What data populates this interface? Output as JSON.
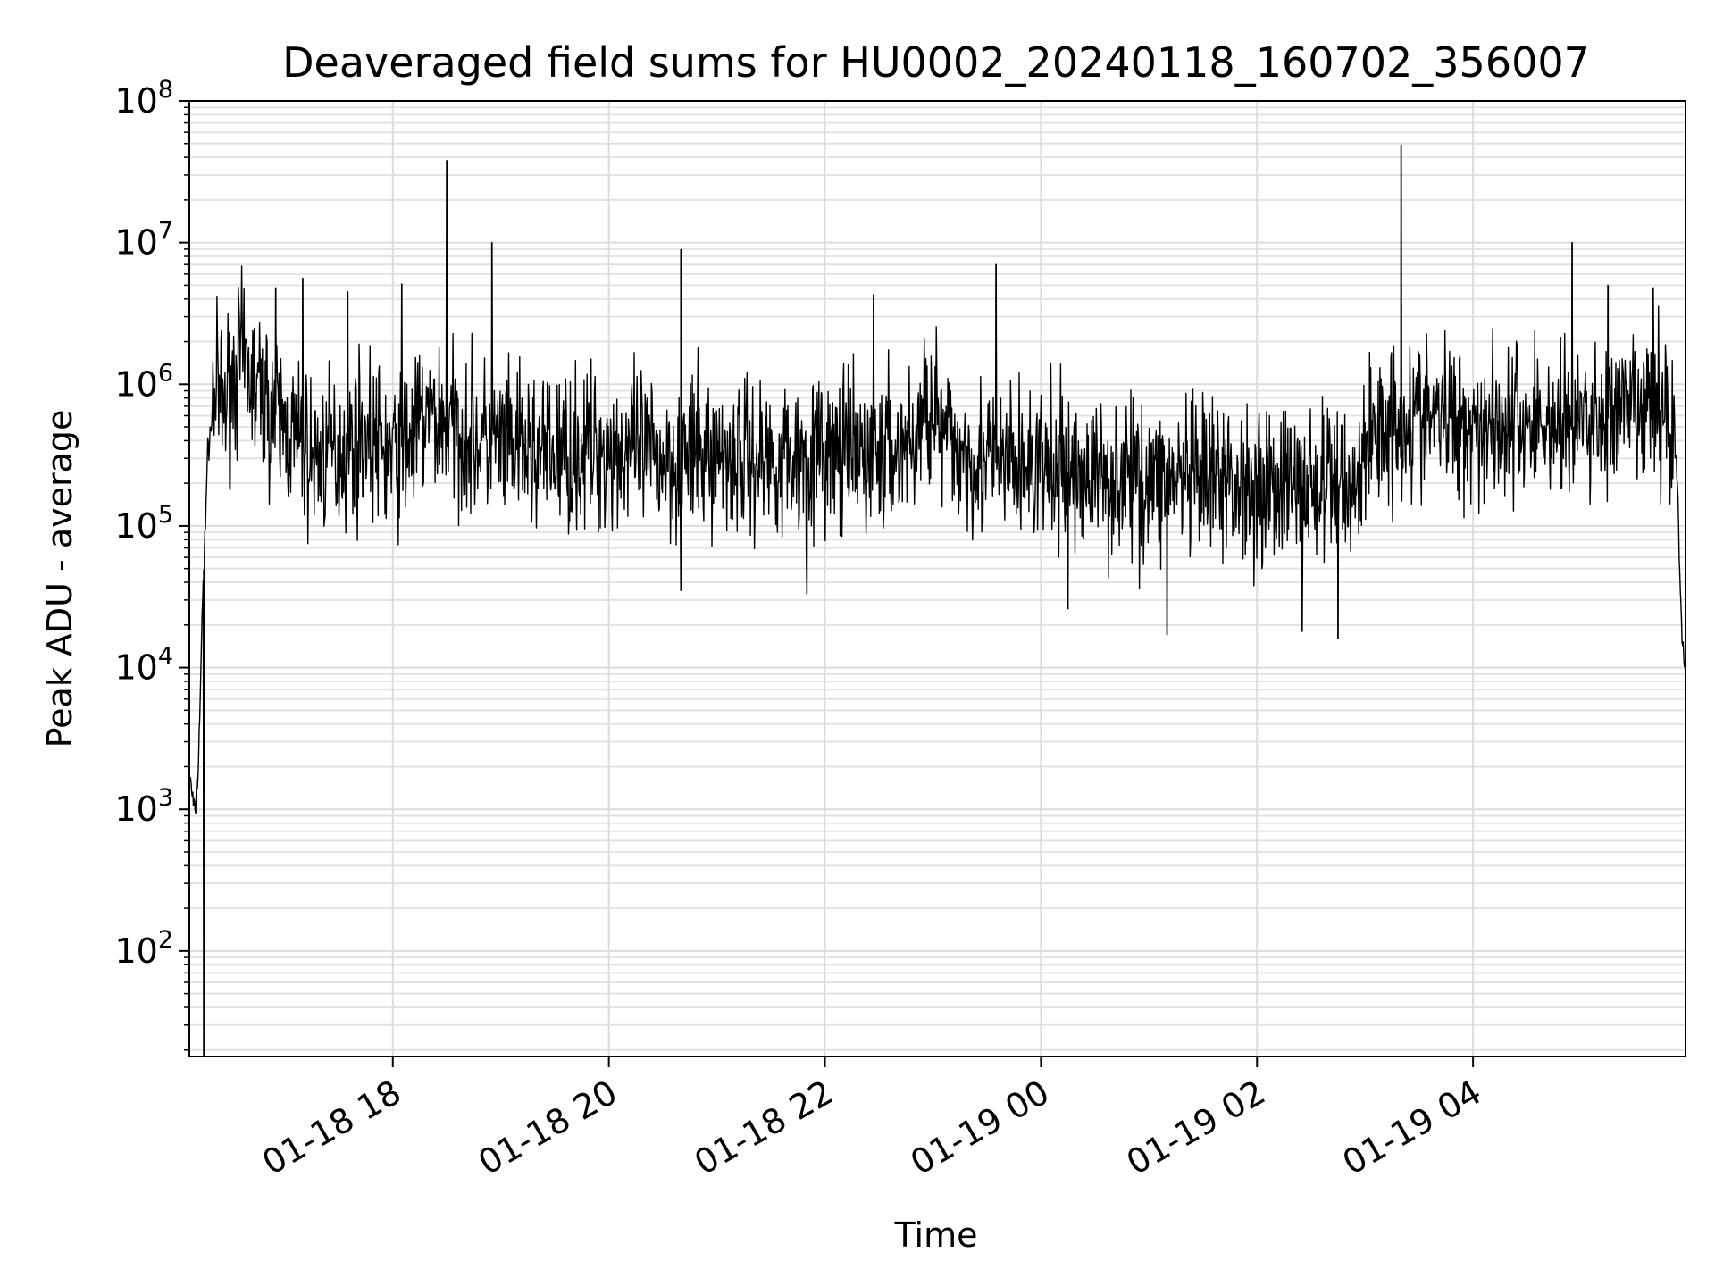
{
  "chart_data": {
    "type": "line",
    "title": "Deaveraged field sums for HU0002_20240118_160702_356007",
    "xlabel": "Time",
    "ylabel": "Peak ADU - average",
    "y_scale": "log",
    "ylim": [
      18,
      100000000
    ],
    "xlim": [
      "2024-01-18T16:07",
      "2024-01-19T05:58"
    ],
    "x_ticks": [
      {
        "label": "01-18 18",
        "t": "2024-01-18T18:00"
      },
      {
        "label": "01-18 20",
        "t": "2024-01-18T20:00"
      },
      {
        "label": "01-18 22",
        "t": "2024-01-18T22:00"
      },
      {
        "label": "01-19 00",
        "t": "2024-01-19T00:00"
      },
      {
        "label": "01-19 02",
        "t": "2024-01-19T02:00"
      },
      {
        "label": "01-19 04",
        "t": "2024-01-19T04:00"
      }
    ],
    "y_ticks": [
      {
        "base": "10",
        "exp": "2",
        "value": 100
      },
      {
        "base": "10",
        "exp": "3",
        "value": 1000
      },
      {
        "base": "10",
        "exp": "4",
        "value": 10000
      },
      {
        "base": "10",
        "exp": "5",
        "value": 100000
      },
      {
        "base": "10",
        "exp": "6",
        "value": 1000000
      },
      {
        "base": "10",
        "exp": "7",
        "value": 10000000
      },
      {
        "base": "10",
        "exp": "8",
        "value": 100000000
      }
    ],
    "grid": true,
    "line_color": "#000000",
    "series": [
      {
        "x": [
          "2024-01-18T16:07",
          "2024-01-18T16:10",
          "2024-01-18T16:12",
          "2024-01-18T16:14",
          "2024-01-18T16:17",
          "2024-01-18T16:21",
          "2024-01-18T16:26",
          "2024-01-18T16:35",
          "2024-01-18T16:45",
          "2024-01-18T17:00",
          "2024-01-18T17:15",
          "2024-01-18T17:30",
          "2024-01-18T17:45",
          "2024-01-18T18:00",
          "2024-01-18T18:20",
          "2024-01-18T18:40",
          "2024-01-18T19:00",
          "2024-01-18T19:30",
          "2024-01-18T20:00",
          "2024-01-18T20:30",
          "2024-01-18T21:00",
          "2024-01-18T21:30",
          "2024-01-18T22:00",
          "2024-01-18T22:30",
          "2024-01-18T22:50",
          "2024-01-18T23:00",
          "2024-01-18T23:05",
          "2024-01-18T23:30",
          "2024-01-19T00:00",
          "2024-01-19T00:30",
          "2024-01-19T01:00",
          "2024-01-19T01:30",
          "2024-01-19T02:00",
          "2024-01-19T02:30",
          "2024-01-19T02:55",
          "2024-01-19T03:05",
          "2024-01-19T03:30",
          "2024-01-19T04:00",
          "2024-01-19T04:30",
          "2024-01-19T05:00",
          "2024-01-19T05:30",
          "2024-01-19T05:48",
          "2024-01-19T05:53",
          "2024-01-19T05:56",
          "2024-01-19T05:58"
        ],
        "y": [
          1800,
          900,
          2000,
          20000,
          300000,
          900000,
          700000,
          1500000,
          900000,
          500000,
          300000,
          350000,
          450000,
          300000,
          600000,
          450000,
          350000,
          320000,
          350000,
          300000,
          320000,
          300000,
          320000,
          300000,
          400000,
          900000,
          400000,
          280000,
          250000,
          230000,
          210000,
          200000,
          200000,
          190000,
          200000,
          500000,
          600000,
          550000,
          520000,
          550000,
          600000,
          700000,
          300000,
          17000,
          8000
        ],
        "spikes": [
          {
            "t": "2024-01-18T16:55",
            "y": 4800000
          },
          {
            "t": "2024-01-18T17:10",
            "y": 5600000
          },
          {
            "t": "2024-01-18T17:35",
            "y": 4500000
          },
          {
            "t": "2024-01-18T18:05",
            "y": 5100000
          },
          {
            "t": "2024-01-18T18:30",
            "y": 38000000
          },
          {
            "t": "2024-01-18T18:55",
            "y": 10000000
          },
          {
            "t": "2024-01-18T20:40",
            "y": 9000000
          },
          {
            "t": "2024-01-18T22:27",
            "y": 4300000
          },
          {
            "t": "2024-01-18T23:35",
            "y": 7000000
          },
          {
            "t": "2024-01-19T03:20",
            "y": 49000000
          },
          {
            "t": "2024-01-19T04:55",
            "y": 10000000
          },
          {
            "t": "2024-01-19T05:15",
            "y": 5000000
          },
          {
            "t": "2024-01-19T05:40",
            "y": 4800000
          }
        ],
        "dips": [
          {
            "t": "2024-01-18T16:15",
            "y": 18
          },
          {
            "t": "2024-01-18T20:40",
            "y": 35000
          },
          {
            "t": "2024-01-18T21:50",
            "y": 33000
          },
          {
            "t": "2024-01-19T00:15",
            "y": 26000
          },
          {
            "t": "2024-01-19T01:10",
            "y": 17000
          },
          {
            "t": "2024-01-19T02:25",
            "y": 18000
          },
          {
            "t": "2024-01-19T02:45",
            "y": 16000
          }
        ]
      }
    ]
  }
}
